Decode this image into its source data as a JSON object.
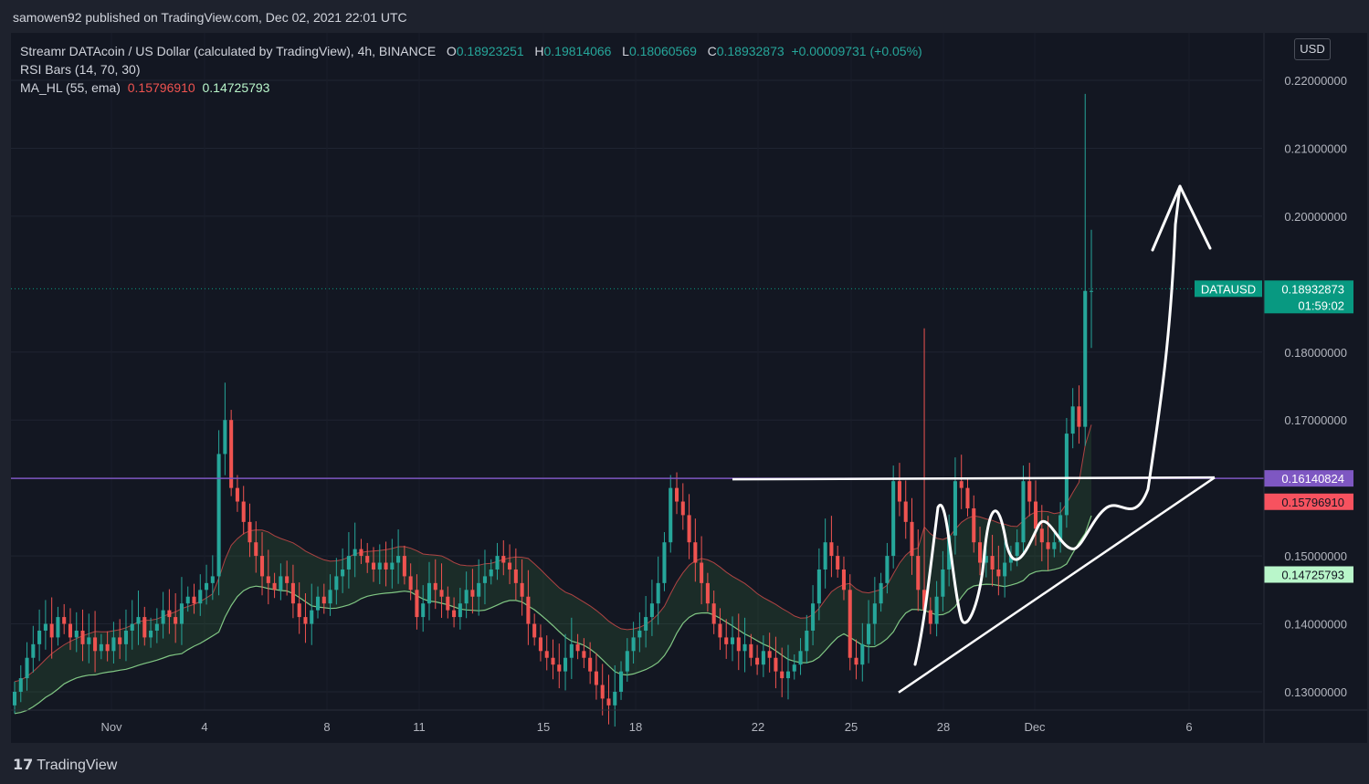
{
  "header": {
    "publisher": "samowen92 published on TradingView.com, Dec 02, 2021 22:01 UTC"
  },
  "legend": {
    "symbol": "Streamr DATAcoin / US Dollar (calculated by TradingView), 4h, BINANCE",
    "o_label": "O",
    "o": "0.18923251",
    "h_label": "H",
    "h": "0.19814066",
    "l_label": "L",
    "l": "0.18060569",
    "c_label": "C",
    "c": "0.18932873",
    "change": "+0.00009731 (+0.05%)",
    "rsi": "RSI Bars (14, 70, 30)",
    "ma": "MA_HL (55, ema)",
    "ma_high": "0.15796910",
    "ma_low": "0.14725793"
  },
  "currency": "USD",
  "footer": {
    "logo_mark": "17",
    "brand": "TradingView"
  },
  "colors": {
    "background": "#131722",
    "up": "#26a69a",
    "down": "#ef5350",
    "resistance": "#7e57c2",
    "ma_high": "#ef5350",
    "ma_low": "#81c784",
    "annotation": "#ffffff",
    "last_price": "#089981"
  },
  "chart_data": {
    "type": "candlestick",
    "symbol": "DATAUSD",
    "interval": "4h",
    "exchange": "BINANCE",
    "ylim": [
      0.127,
      0.225
    ],
    "y_ticks": [
      {
        "label": "0.22000000",
        "value": 0.22
      },
      {
        "label": "0.21000000",
        "value": 0.21
      },
      {
        "label": "0.20000000",
        "value": 0.2
      },
      {
        "label": "0.18000000",
        "value": 0.18
      },
      {
        "label": "0.17000000",
        "value": 0.17
      },
      {
        "label": "0.15000000",
        "value": 0.15
      },
      {
        "label": "0.14000000",
        "value": 0.14
      },
      {
        "label": "0.13000000",
        "value": 0.13
      }
    ],
    "x_ticks": [
      "Nov",
      "4",
      "8",
      "11",
      "15",
      "18",
      "22",
      "25",
      "28",
      "Dec",
      "6"
    ],
    "last_price": {
      "symbol_label": "DATAUSD",
      "price": "0.18932873",
      "countdown": "01:59:02",
      "value": 0.18932873
    },
    "horizontal_level": {
      "label": "0.16140824",
      "value": 0.16140824
    },
    "ma_high_label": {
      "label": "0.15796910",
      "value": 0.1579691
    },
    "ma_low_label": {
      "label": "0.14725793",
      "value": 0.14725793
    },
    "closes": [
      0.13,
      0.132,
      0.135,
      0.137,
      0.139,
      0.14,
      0.138,
      0.141,
      0.14,
      0.138,
      0.139,
      0.137,
      0.138,
      0.136,
      0.137,
      0.136,
      0.138,
      0.137,
      0.139,
      0.14,
      0.141,
      0.138,
      0.139,
      0.14,
      0.142,
      0.141,
      0.14,
      0.143,
      0.144,
      0.143,
      0.145,
      0.146,
      0.147,
      0.165,
      0.17,
      0.16,
      0.158,
      0.155,
      0.152,
      0.15,
      0.147,
      0.146,
      0.145,
      0.147,
      0.146,
      0.143,
      0.141,
      0.14,
      0.142,
      0.144,
      0.143,
      0.145,
      0.147,
      0.148,
      0.15,
      0.151,
      0.15,
      0.149,
      0.148,
      0.149,
      0.148,
      0.149,
      0.15,
      0.147,
      0.145,
      0.141,
      0.143,
      0.146,
      0.145,
      0.144,
      0.142,
      0.141,
      0.143,
      0.145,
      0.144,
      0.146,
      0.147,
      0.148,
      0.15,
      0.149,
      0.148,
      0.146,
      0.144,
      0.14,
      0.138,
      0.136,
      0.135,
      0.134,
      0.133,
      0.135,
      0.137,
      0.136,
      0.135,
      0.133,
      0.131,
      0.129,
      0.128,
      0.13,
      0.133,
      0.136,
      0.138,
      0.139,
      0.141,
      0.143,
      0.146,
      0.152,
      0.16,
      0.158,
      0.156,
      0.152,
      0.149,
      0.146,
      0.143,
      0.14,
      0.138,
      0.137,
      0.138,
      0.136,
      0.137,
      0.135,
      0.134,
      0.136,
      0.135,
      0.133,
      0.132,
      0.133,
      0.134,
      0.136,
      0.139,
      0.143,
      0.148,
      0.152,
      0.15,
      0.148,
      0.145,
      0.135,
      0.134,
      0.137,
      0.14,
      0.143,
      0.146,
      0.15,
      0.161,
      0.158,
      0.155,
      0.15,
      0.145,
      0.142,
      0.14,
      0.144,
      0.148,
      0.153,
      0.161,
      0.16,
      0.157,
      0.152,
      0.149,
      0.15,
      0.148,
      0.147,
      0.149,
      0.15,
      0.152,
      0.161,
      0.158,
      0.154,
      0.152,
      0.151,
      0.152,
      0.156,
      0.168,
      0.172,
      0.169,
      0.189,
      0.189
    ],
    "annotations": {
      "resistance_line": "horizontal trendline at ~0.1614",
      "support_line": "ascending trendline from ~0.130 to ~0.1614",
      "projected_path": "curved arrow up to ~0.204"
    }
  }
}
